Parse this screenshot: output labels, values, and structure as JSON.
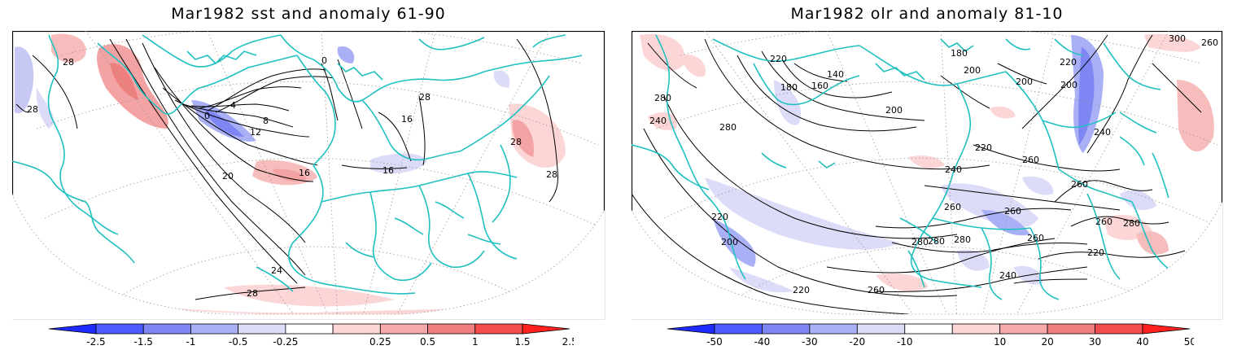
{
  "panels": [
    {
      "title": "Mar1982 sst and anomaly 61-90",
      "contour_labels": [
        "28",
        "28",
        "0",
        "0",
        "4",
        "8",
        "12",
        "16",
        "16",
        "20",
        "24",
        "28",
        "16",
        "28",
        "28",
        "28"
      ],
      "colorbar": {
        "ticks": [
          "-2.5",
          "-1.5",
          "-1",
          "-0.5",
          "-0.25",
          "0.25",
          "0.5",
          "1",
          "1.5",
          "2.5"
        ],
        "colors": [
          "#1e2bff",
          "#4a5cff",
          "#7d86f2",
          "#aab0f5",
          "#dcdcf8",
          "#ffffff",
          "#fcd6d6",
          "#f5a9a9",
          "#f07e7e",
          "#f54d4d",
          "#ff2020"
        ]
      }
    },
    {
      "title": "Mar1982 olr and anomaly 81-10",
      "contour_labels": [
        "280",
        "220",
        "180",
        "160",
        "140",
        "180",
        "200",
        "200",
        "200",
        "220",
        "280",
        "240",
        "200",
        "220",
        "240",
        "260",
        "260",
        "260",
        "260",
        "280",
        "260",
        "280",
        "280",
        "260",
        "240",
        "220",
        "260",
        "220",
        "240",
        "300",
        "260",
        "280",
        "220",
        "200"
      ],
      "colorbar": {
        "ticks": [
          "-50",
          "-40",
          "-30",
          "-20",
          "-10",
          "10",
          "20",
          "30",
          "40",
          "50"
        ],
        "colors": [
          "#1e2bff",
          "#4a5cff",
          "#7d86f2",
          "#aab0f5",
          "#dcdcf8",
          "#ffffff",
          "#fcd6d6",
          "#f5a9a9",
          "#f07e7e",
          "#f54d4d",
          "#ff2020"
        ]
      }
    }
  ]
}
